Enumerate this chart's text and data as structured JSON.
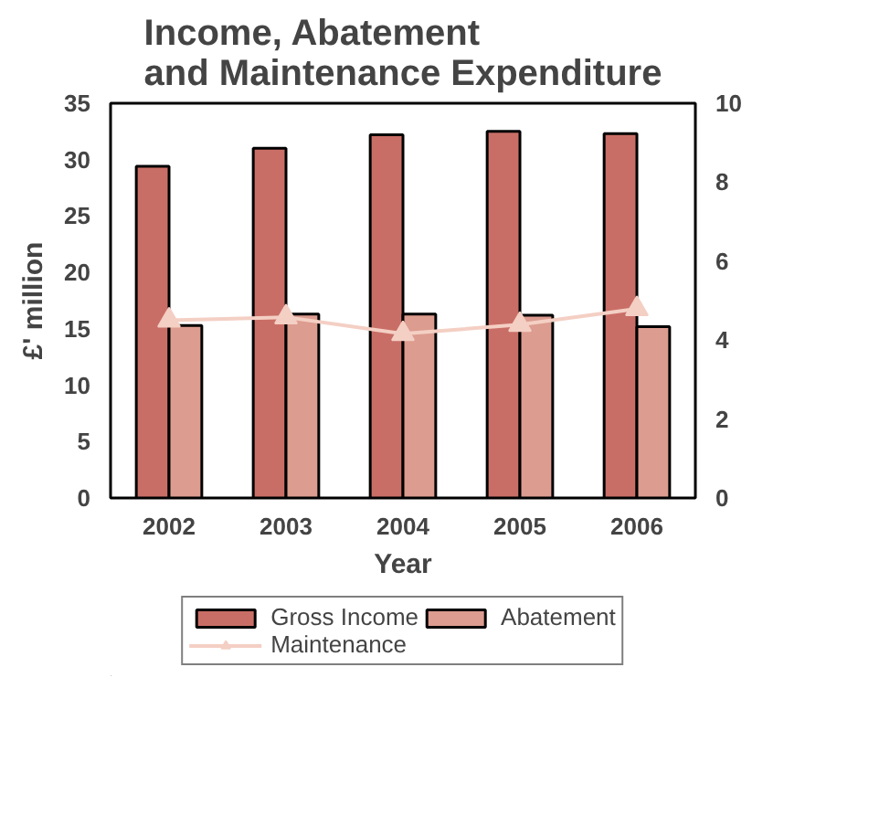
{
  "chart_data": {
    "type": "bar",
    "title": "Income, Abatement\nand Maintenance Expenditure",
    "xlabel": "Year",
    "ylabel": "£' million",
    "categories": [
      "2002",
      "2003",
      "2004",
      "2005",
      "2006"
    ],
    "series": [
      {
        "name": "Gross Income",
        "color": "#c96e66",
        "values": [
          29.4,
          31.0,
          32.2,
          32.5,
          32.3
        ]
      },
      {
        "name": "Abatement",
        "color": "#dc9c8f",
        "values": [
          15.3,
          16.3,
          16.3,
          16.2,
          15.2
        ]
      },
      {
        "name": "Maintenance",
        "type": "line",
        "axis": "y2",
        "color": "#f4cfc4",
        "marker": "triangle",
        "values": [
          4.5,
          4.58,
          4.16,
          4.39,
          4.79
        ]
      }
    ],
    "ylim": [
      0,
      35
    ],
    "yticks": [
      0,
      5,
      10,
      15,
      20,
      25,
      30,
      35
    ],
    "y2lim": [
      0,
      10
    ],
    "y2ticks": [
      0,
      2,
      4,
      6,
      8,
      10
    ],
    "grid": false,
    "legend": "bottom"
  }
}
